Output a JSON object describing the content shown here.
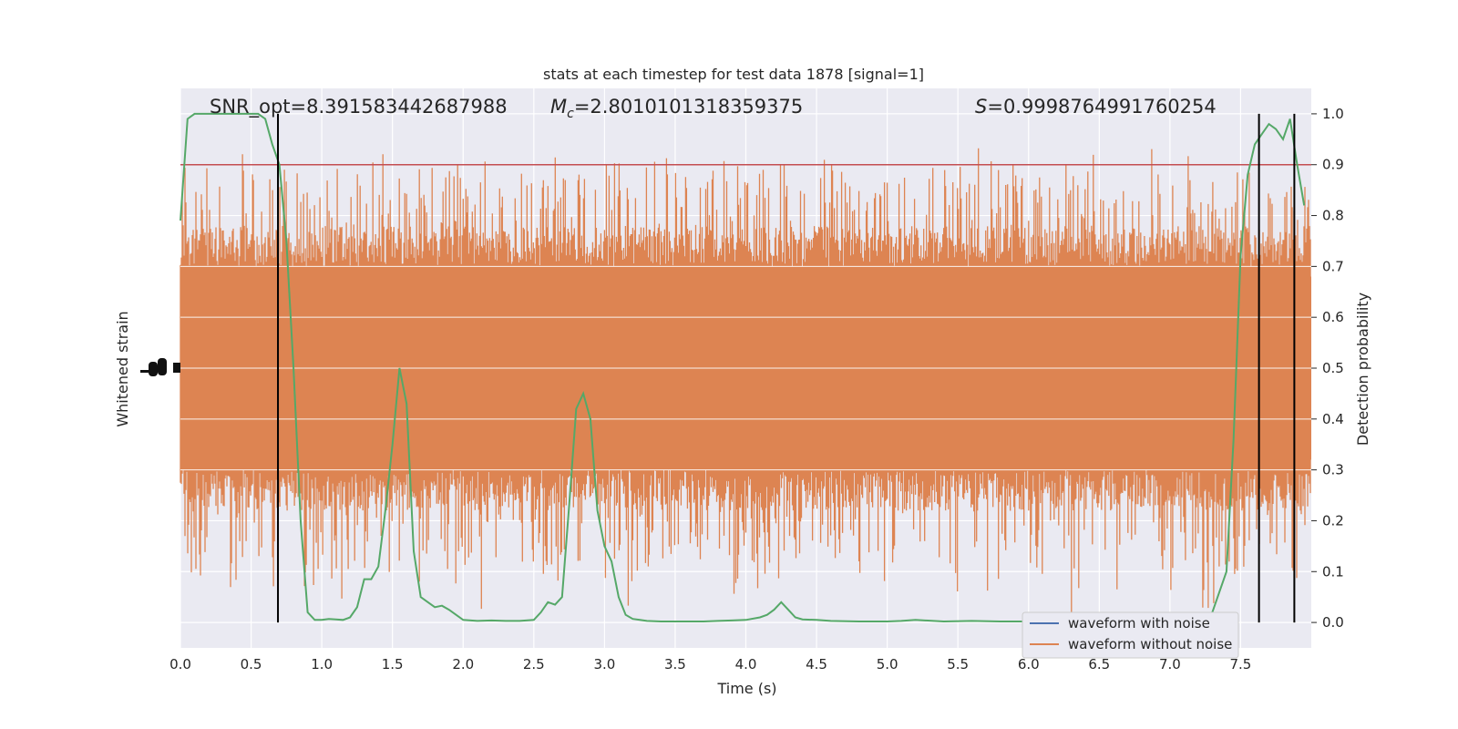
{
  "chart_data": {
    "type": "line",
    "title": "stats at each timestep for test data 1878 [signal=1]",
    "xlabel": "Time (s)",
    "ylabel_left": "Whitened strain",
    "ylabel_right": "Detection probability",
    "xlim": [
      0.0,
      8.0
    ],
    "ylim_right": [
      -0.05,
      1.05
    ],
    "x_ticks": [
      "0.0",
      "0.5",
      "1.0",
      "1.5",
      "2.0",
      "2.5",
      "3.0",
      "3.5",
      "4.0",
      "4.5",
      "5.0",
      "5.5",
      "6.0",
      "6.5",
      "7.0",
      "7.5"
    ],
    "y_ticks_right": [
      "0.0",
      "0.1",
      "0.2",
      "0.3",
      "0.4",
      "0.5",
      "0.6",
      "0.7",
      "0.8",
      "0.9",
      "1.0"
    ],
    "grid": true,
    "annotations": {
      "snr": "SNR_opt=8.391583442687988",
      "mc_symbol": "M",
      "mc_sub": "c",
      "mc_value": "=2.8010101318359375",
      "s_symbol": "S",
      "s_value": "=0.9998764991760254"
    },
    "threshold": 0.9,
    "vlines_x": [
      0.69,
      7.63,
      7.88
    ],
    "legend": {
      "placement": "lower-right",
      "entries": [
        "waveform with noise",
        "waveform without noise"
      ]
    },
    "colors": {
      "noise": "#4c72b0",
      "strain": "#dd8452",
      "prob": "#55a868",
      "threshold": "#c44e52",
      "vline": "#000000",
      "bg": "#eaeaf2"
    },
    "strain_envelope": {
      "baseline": 0.5,
      "core_low": 0.3,
      "core_high": 0.7,
      "peak_high": 0.91,
      "peak_low": 0.01
    },
    "series": [
      {
        "name": "Detection probability",
        "x": [
          0.0,
          0.05,
          0.1,
          0.15,
          0.2,
          0.25,
          0.3,
          0.35,
          0.4,
          0.45,
          0.5,
          0.55,
          0.6,
          0.65,
          0.7,
          0.75,
          0.8,
          0.85,
          0.9,
          0.95,
          1.0,
          1.05,
          1.1,
          1.15,
          1.2,
          1.25,
          1.3,
          1.35,
          1.4,
          1.45,
          1.5,
          1.55,
          1.6,
          1.65,
          1.7,
          1.75,
          1.8,
          1.85,
          1.9,
          1.95,
          2.0,
          2.1,
          2.2,
          2.3,
          2.4,
          2.5,
          2.55,
          2.6,
          2.65,
          2.7,
          2.75,
          2.8,
          2.85,
          2.9,
          2.95,
          3.0,
          3.05,
          3.1,
          3.15,
          3.2,
          3.25,
          3.3,
          3.4,
          3.5,
          3.6,
          3.7,
          3.8,
          3.9,
          4.0,
          4.1,
          4.15,
          4.2,
          4.25,
          4.3,
          4.35,
          4.4,
          4.5,
          4.6,
          4.8,
          5.0,
          5.1,
          5.2,
          5.4,
          5.6,
          5.8,
          6.0,
          6.2,
          6.4,
          6.6,
          6.8,
          7.0,
          7.2,
          7.3,
          7.4,
          7.45,
          7.5,
          7.55,
          7.6,
          7.65,
          7.7,
          7.75,
          7.8,
          7.85,
          7.9,
          7.95
        ],
        "values": [
          0.79,
          0.99,
          1.0,
          1.0,
          1.0,
          1.0,
          1.0,
          1.0,
          1.0,
          1.0,
          1.0,
          1.0,
          0.99,
          0.94,
          0.9,
          0.75,
          0.5,
          0.2,
          0.02,
          0.005,
          0.005,
          0.007,
          0.006,
          0.005,
          0.01,
          0.03,
          0.085,
          0.085,
          0.11,
          0.22,
          0.35,
          0.5,
          0.43,
          0.14,
          0.05,
          0.04,
          0.03,
          0.033,
          0.025,
          0.015,
          0.005,
          0.003,
          0.004,
          0.003,
          0.003,
          0.005,
          0.02,
          0.04,
          0.035,
          0.05,
          0.23,
          0.42,
          0.45,
          0.4,
          0.22,
          0.15,
          0.12,
          0.05,
          0.015,
          0.007,
          0.005,
          0.003,
          0.002,
          0.002,
          0.002,
          0.002,
          0.003,
          0.004,
          0.005,
          0.01,
          0.015,
          0.025,
          0.04,
          0.025,
          0.01,
          0.006,
          0.005,
          0.003,
          0.002,
          0.002,
          0.003,
          0.005,
          0.002,
          0.003,
          0.002,
          0.002,
          0.002,
          0.003,
          0.002,
          0.002,
          0.003,
          0.005,
          0.02,
          0.1,
          0.36,
          0.72,
          0.88,
          0.94,
          0.96,
          0.98,
          0.97,
          0.95,
          0.99,
          0.9,
          0.82
        ]
      }
    ]
  }
}
